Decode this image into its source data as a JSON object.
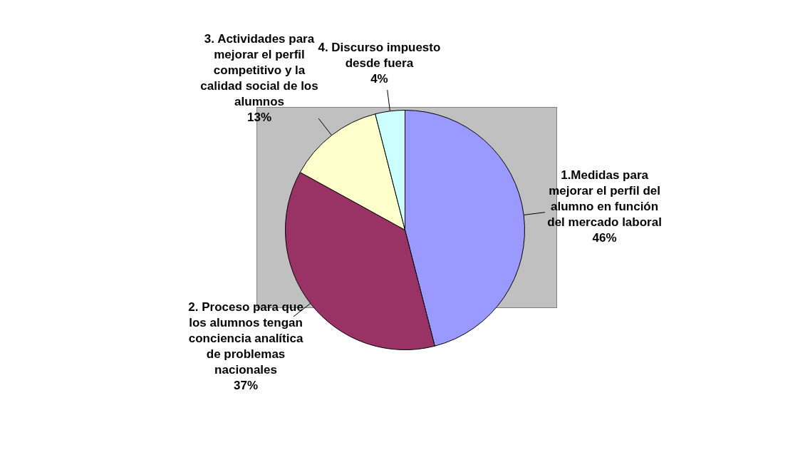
{
  "chart_data": {
    "type": "pie",
    "categories": [
      "1.Medidas para mejorar el perfil del alumno en función del mercado laboral",
      "2. Proceso para que los alumnos tengan conciencia analítica de problemas nacionales",
      "3. Actividades para mejorar el perfil competitivo y la calidad social de los alumnos",
      "4. Discurso impuesto desde fuera"
    ],
    "values": [
      46,
      37,
      13,
      4
    ],
    "value_labels": [
      "46%",
      "37%",
      "13%",
      "4%"
    ],
    "colors": [
      "#9999ff",
      "#993366",
      "#ffffcc",
      "#ccffff"
    ],
    "legend": false
  }
}
